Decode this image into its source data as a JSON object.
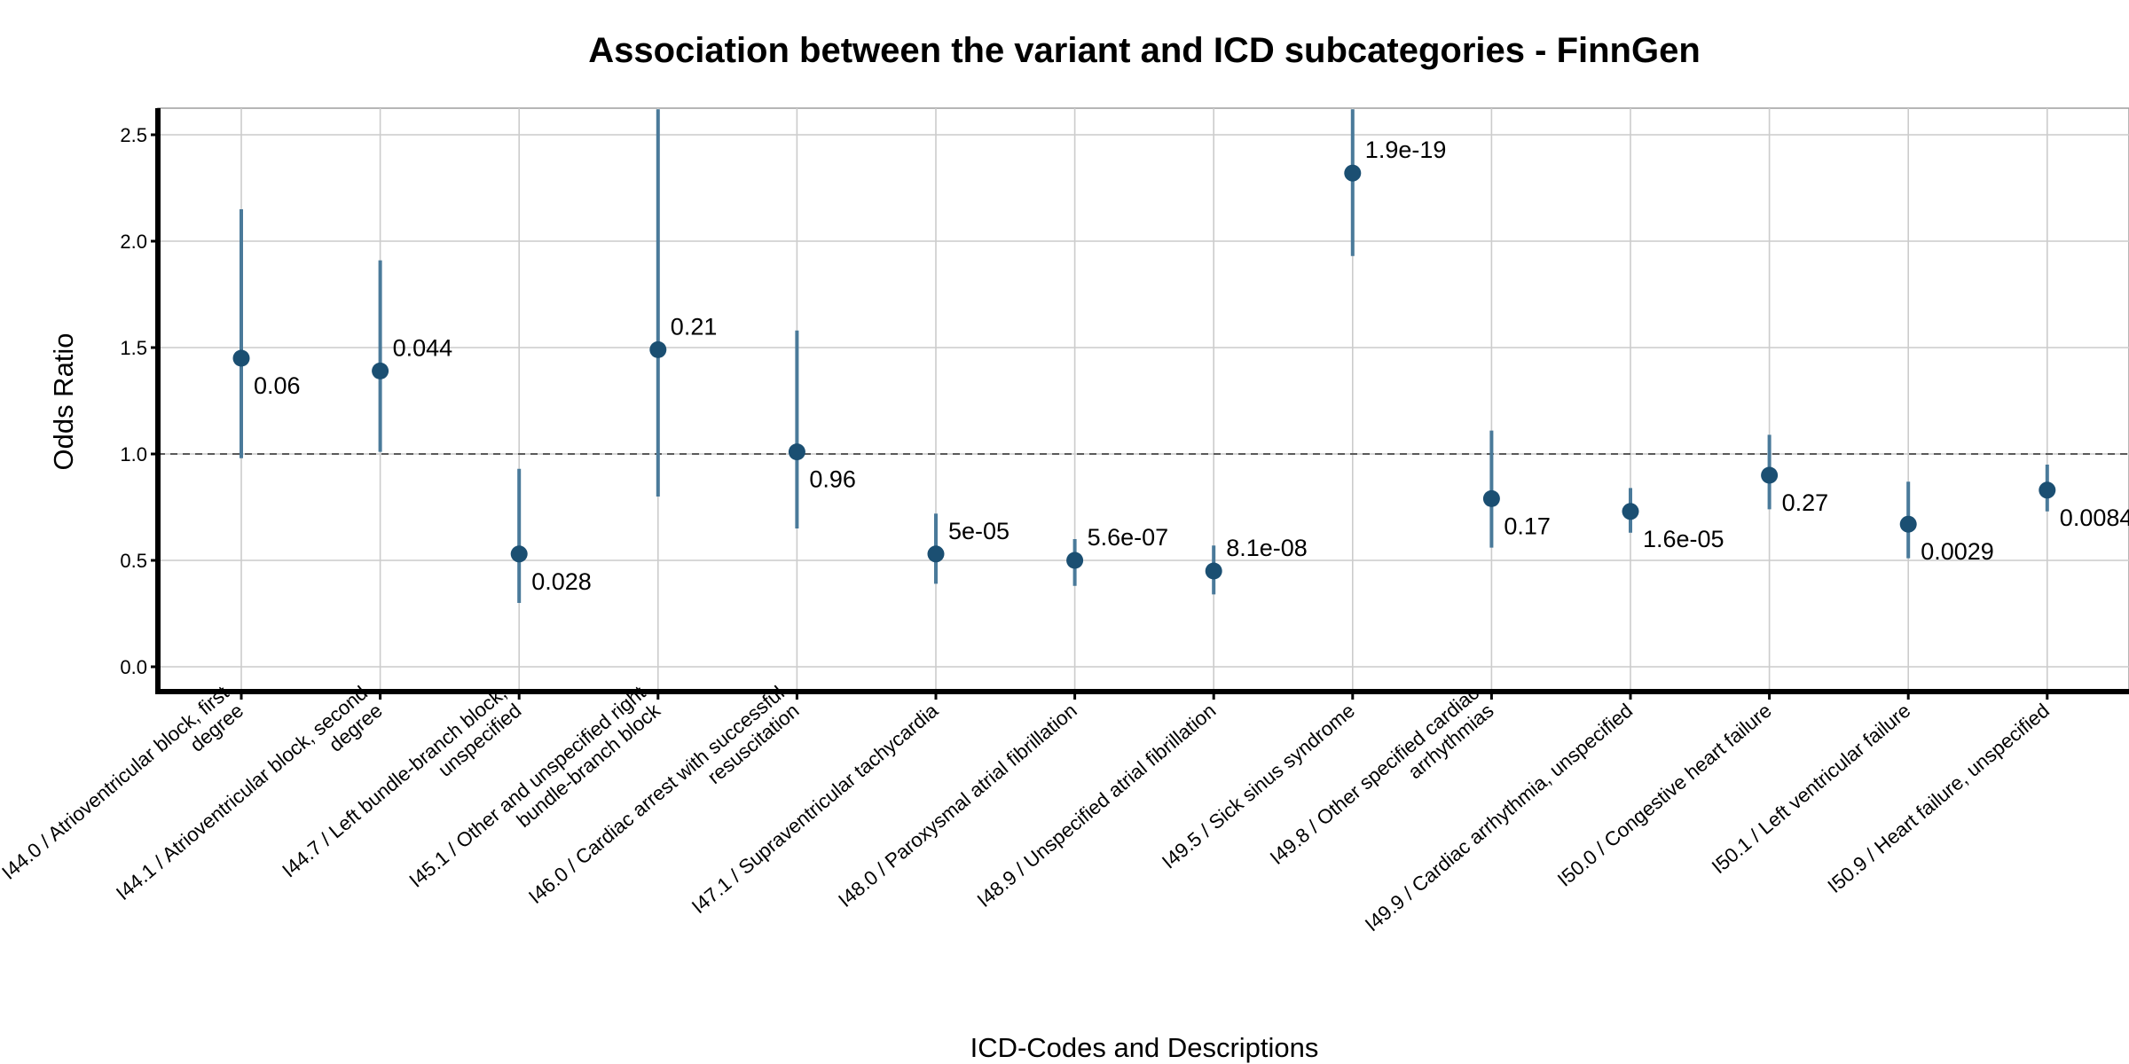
{
  "chart_data": {
    "type": "scatter",
    "title": "Association between the variant and ICD subcategories - FinnGen",
    "xlabel": "ICD-Codes and Descriptions",
    "ylabel": "Odds Ratio",
    "ylim": [
      -0.12,
      2.62
    ],
    "yticks": [
      "0.0",
      "0.5",
      "1.0",
      "1.5",
      "2.0",
      "2.5"
    ],
    "reference_line": 1.0,
    "grid": true,
    "point_color": "#1b4f72",
    "errorbar_color": "#4a7a9a",
    "categories": [
      [
        "I44.0 / Atrioventricular block, first",
        "degree"
      ],
      [
        "I44.1 / Atrioventricular block, second",
        "degree"
      ],
      [
        "I44.7 / Left bundle-branch block,",
        "unspecified"
      ],
      [
        "I45.1 / Other and unspecified right",
        "bundle-branch block"
      ],
      [
        "I46.0 / Cardiac arrest with successful",
        "resuscitation"
      ],
      [
        "I47.1 / Supraventricular tachycardia"
      ],
      [
        "I48.0 / Paroxysmal atrial fibrillation"
      ],
      [
        "I48.9 / Unspecified atrial fibrillation"
      ],
      [
        "I49.5 / Sick sinus syndrome"
      ],
      [
        "I49.8 / Other specified cardiac",
        "arrhythmias"
      ],
      [
        "I49.9 / Cardiac arrhythmia, unspecified"
      ],
      [
        "I50.0 / Congestive heart failure"
      ],
      [
        "I50.1 / Left ventricular failure"
      ],
      [
        "I50.9 / Heart failure, unspecified"
      ]
    ],
    "odds_ratio": [
      1.45,
      1.39,
      0.53,
      1.49,
      1.01,
      0.53,
      0.5,
      0.45,
      2.32,
      0.79,
      0.73,
      0.9,
      0.67,
      0.83
    ],
    "ci_lower": [
      0.98,
      1.01,
      0.3,
      0.8,
      0.65,
      0.39,
      0.38,
      0.34,
      1.93,
      0.56,
      0.63,
      0.74,
      0.51,
      0.73
    ],
    "ci_upper": [
      2.15,
      1.91,
      0.93,
      2.62,
      1.58,
      0.72,
      0.6,
      0.57,
      2.62,
      1.11,
      0.84,
      1.09,
      0.87,
      0.95
    ],
    "p_values": [
      "0.06",
      "0.044",
      "0.028",
      "0.21",
      "0.96",
      "5e-05",
      "5.6e-07",
      "8.1e-08",
      "1.9e-19",
      "0.17",
      "1.6e-05",
      "0.27",
      "0.0029",
      "0.0084"
    ],
    "p_label_position": [
      "below",
      "above",
      "below",
      "above",
      "below",
      "above",
      "above",
      "above",
      "above",
      "below",
      "below",
      "below",
      "below",
      "below"
    ]
  }
}
